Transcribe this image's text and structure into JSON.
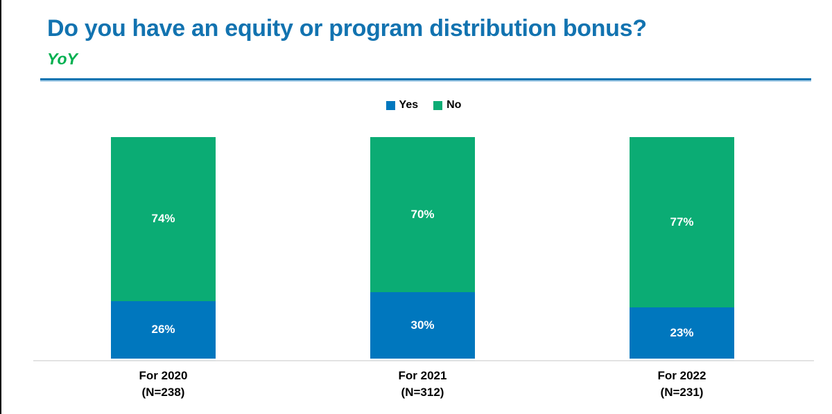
{
  "page": {
    "title": "Do you have an equity or program distribution bonus?",
    "subtitle": "YoY"
  },
  "colors": {
    "title_blue": "#1273B0",
    "divider_blue": "#1273B0",
    "subtitle_green": "#00B050",
    "yes_blue": "#0077BE",
    "no_green": "#0BAC74",
    "axis_gray": "#E2E2E2",
    "data_label_white": "#FFFFFF",
    "axis_text_black": "#000000",
    "left_border_black": "#000000"
  },
  "legend": {
    "position": "top-center",
    "items": [
      {
        "label": "Yes",
        "color": "#0077BE"
      },
      {
        "label": "No",
        "color": "#0BAC74"
      }
    ]
  },
  "chart_data": {
    "type": "bar",
    "stacked": true,
    "orientation": "vertical",
    "title": "Do you have an equity or program distribution bonus?",
    "subtitle": "YoY",
    "categories": [
      "For 2020",
      "For 2021",
      "For 2022"
    ],
    "category_sublabels": [
      "(N=238)",
      "(N=312)",
      "(N=231)"
    ],
    "series": [
      {
        "name": "Yes",
        "color": "#0077BE",
        "values": [
          26,
          30,
          23
        ]
      },
      {
        "name": "No",
        "color": "#0BAC74",
        "values": [
          74,
          70,
          77
        ]
      }
    ],
    "value_format": "percent",
    "data_labels": [
      "74%",
      "26%",
      "70%",
      "30%",
      "77%",
      "23%"
    ],
    "ylim": [
      0,
      100
    ],
    "grid": false,
    "legend_position": "top"
  }
}
